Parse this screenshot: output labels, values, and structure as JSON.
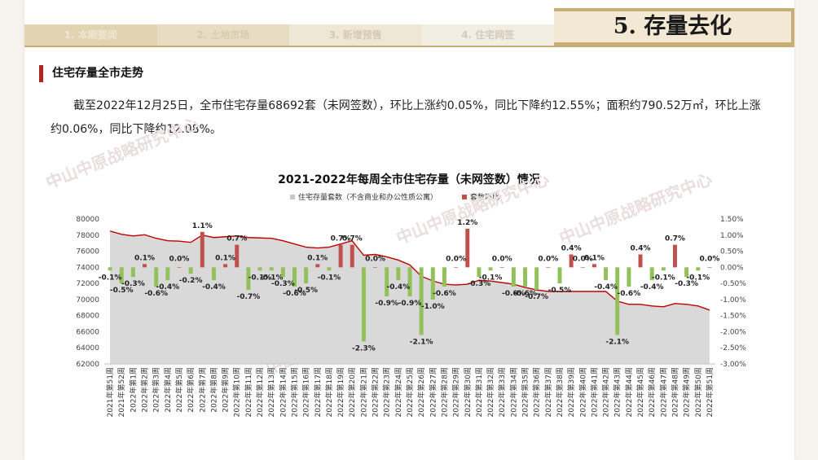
{
  "nav": {
    "tabs": [
      {
        "label": "1. 本期要闻"
      },
      {
        "label": "2. 土地市场"
      },
      {
        "label": "3. 新增预售"
      },
      {
        "label": "4. 住宅网签"
      }
    ]
  },
  "section_title": "5. 存量去化",
  "subsection_title": "住宅存量全市走势",
  "paragraph": "截至2022年12月25日，全市住宅存量68692套（未网签数），环比上涨约0.05%，同比下降约12.55%；面积约790.52万㎡，环比上涨约0.06%，同比下降约12.08%。",
  "watermark_text": "中山中原战略研究中心",
  "colors": {
    "accent": "#c8ad74",
    "marker": "#b22222",
    "area": "#d9d9d9",
    "bar_up": "#c0504d",
    "bar_down": "#92c05a",
    "line": "#c00000"
  },
  "chart_data": {
    "type": "area+bar",
    "title": "2021-2022年每周全市住宅存量（未网签数）情况",
    "legend": [
      "住宅存量套数（不含商业和办公性质公寓）",
      "套数环比"
    ],
    "categories": [
      "2021年第51周",
      "2021年第52周",
      "2022年第1周",
      "2022年第2周",
      "2022年第3周",
      "2022年第4周",
      "2022年第5周",
      "2022年第6周",
      "2022年第7周",
      "2022年第8周",
      "2022年第9周",
      "2022年第10周",
      "2022年第11周",
      "2022年第12周",
      "2022年第13周",
      "2022年第14周",
      "2022年第15周",
      "2022年第16周",
      "2022年第17周",
      "2022年第18周",
      "2022年第19周",
      "2022年第20周",
      "2022年第21周",
      "2022年第22周",
      "2022年第23周",
      "2022年第24周",
      "2022年第25周",
      "2022年第26周",
      "2022年第27周",
      "2022年第28周",
      "2022年第29周",
      "2022年第30周",
      "2022年第31周",
      "2022年第32周",
      "2022年第33周",
      "2022年第34周",
      "2022年第35周",
      "2022年第36周",
      "2022年第37周",
      "2022年第38周",
      "2022年第39周",
      "2022年第40周",
      "2022年第41周",
      "2022年第42周",
      "2022年第43周",
      "2022年第44周",
      "2022年第45周",
      "2022年第46周",
      "2022年第47周",
      "2022年第48周",
      "2022年第49周",
      "2022年第50周",
      "2022年第51周"
    ],
    "series": [
      {
        "name": "住宅存量套数（不含商业和办公性质公寓）",
        "axis": "left",
        "values": [
          78500,
          78100,
          77900,
          78050,
          77600,
          77300,
          77250,
          77100,
          78000,
          77700,
          77800,
          77900,
          77700,
          77650,
          77600,
          77300,
          76900,
          76500,
          76400,
          76500,
          76900,
          77300,
          75500,
          75600,
          75300,
          74900,
          74300,
          72900,
          72300,
          71900,
          71800,
          71900,
          72400,
          72300,
          72100,
          71900,
          71500,
          71200,
          71000,
          71000,
          71000,
          71000,
          71000,
          71000,
          69800,
          69400,
          69400,
          69200,
          69100,
          69500,
          69400,
          69200,
          68692
        ]
      },
      {
        "name": "套数环比",
        "axis": "right",
        "unit": "%",
        "values": [
          -0.1,
          -0.5,
          -0.3,
          0.1,
          -0.6,
          -0.4,
          0.0,
          -0.2,
          1.1,
          -0.4,
          0.1,
          0.7,
          -0.7,
          -0.1,
          -0.1,
          -0.3,
          -0.6,
          -0.5,
          0.1,
          -0.1,
          0.7,
          0.7,
          -2.3,
          0.0,
          -0.9,
          -0.4,
          -0.9,
          -2.1,
          -1.0,
          -0.6,
          0.0,
          1.2,
          -0.3,
          -0.1,
          0.0,
          -0.6,
          -0.6,
          -0.7,
          0.0,
          -0.5,
          0.4,
          0.0,
          0.1,
          -0.4,
          -2.1,
          -0.6,
          0.4,
          -0.4,
          -0.1,
          0.7,
          -0.3,
          -0.1,
          0.0
        ],
        "labels": [
          "-0.1%",
          "-0.5%",
          "-0.3%",
          "0.1%",
          "-0.6%",
          "-0.4%",
          "0.0%",
          "-0.2%",
          "1.1%",
          "-0.4%",
          "0.1%",
          "0.7%",
          "-0.7%",
          "-0.1%",
          "-0.1%",
          "-0.3%",
          "-0.6%",
          "-0.5%",
          "0.1%",
          "-0.1%",
          "0.7%",
          "0.7%",
          "-2.3%",
          "0.0%",
          "-0.9%",
          "-0.4%",
          "-0.9%",
          "-2.1%",
          "-1.0%",
          "-0.6%",
          "0.0%",
          "1.2%",
          "-0.3%",
          "-0.1%",
          "0.0%",
          "-0.6%",
          "-0.6%",
          "-0.7%",
          "0.0%",
          "-0.5%",
          "0.4%",
          "0.0%",
          "0.1%",
          "-0.4%",
          "-2.1%",
          "-0.6%",
          "0.4%",
          "-0.4%",
          "-0.1%",
          "0.7%",
          "-0.3%",
          "-0.1%",
          "0.0%"
        ]
      }
    ],
    "y_left": {
      "min": 62000,
      "max": 80000,
      "ticks": [
        "62000",
        "64000",
        "66000",
        "68000",
        "70000",
        "72000",
        "74000",
        "76000",
        "78000",
        "80000"
      ]
    },
    "y_right": {
      "min": -3.0,
      "max": 1.5,
      "ticks": [
        "-3.00%",
        "-2.50%",
        "-2.00%",
        "-1.50%",
        "-1.00%",
        "-0.50%",
        "0.00%",
        "0.50%",
        "1.00%",
        "1.50%"
      ]
    },
    "grid": false,
    "legend_position": "top"
  }
}
